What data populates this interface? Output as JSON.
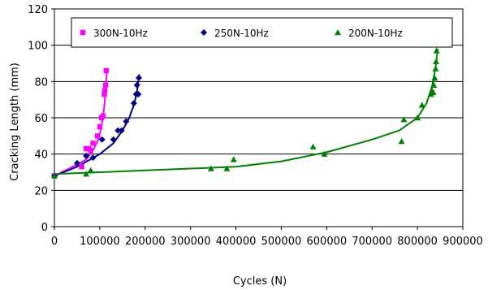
{
  "chart_data": {
    "type": "scatter",
    "title": "",
    "xlabel": "Cycles (N)",
    "ylabel": "Cracking Length (mm)",
    "xlim": [
      0,
      900000
    ],
    "ylim": [
      0,
      120
    ],
    "x_ticks": [
      0,
      100000,
      200000,
      300000,
      400000,
      500000,
      600000,
      700000,
      800000,
      900000
    ],
    "y_ticks": [
      0,
      20,
      40,
      60,
      80,
      100,
      120
    ],
    "grid": "horizontal",
    "legend_position": "top",
    "series": [
      {
        "name": "300N-10Hz",
        "color": "#ff00ff",
        "marker": "square",
        "points": [
          [
            0,
            28
          ],
          [
            60000,
            33
          ],
          [
            70000,
            43
          ],
          [
            75000,
            43
          ],
          [
            80000,
            42
          ],
          [
            85000,
            46
          ],
          [
            95000,
            50
          ],
          [
            100000,
            55
          ],
          [
            104000,
            60
          ],
          [
            107000,
            61
          ],
          [
            110000,
            73
          ],
          [
            111000,
            75
          ],
          [
            113000,
            78
          ],
          [
            114000,
            86
          ]
        ],
        "trend": [
          [
            0,
            28
          ],
          [
            40000,
            33
          ],
          [
            70000,
            37
          ],
          [
            85000,
            42
          ],
          [
            95000,
            47
          ],
          [
            102000,
            53
          ],
          [
            107000,
            60
          ],
          [
            111000,
            69
          ],
          [
            114000,
            80
          ],
          [
            116000,
            86
          ]
        ]
      },
      {
        "name": "250N-10Hz",
        "color": "#000080",
        "marker": "diamond",
        "points": [
          [
            0,
            28
          ],
          [
            50000,
            35
          ],
          [
            70000,
            39
          ],
          [
            85000,
            38
          ],
          [
            105000,
            48
          ],
          [
            130000,
            48
          ],
          [
            140000,
            53
          ],
          [
            148000,
            53
          ],
          [
            158000,
            58
          ],
          [
            175000,
            68
          ],
          [
            180000,
            73
          ],
          [
            182000,
            78
          ],
          [
            185000,
            73
          ],
          [
            186000,
            82
          ]
        ],
        "trend": [
          [
            0,
            28
          ],
          [
            50000,
            33
          ],
          [
            100000,
            40
          ],
          [
            130000,
            46
          ],
          [
            150000,
            53
          ],
          [
            165000,
            60
          ],
          [
            175000,
            67
          ],
          [
            181000,
            73
          ],
          [
            185000,
            80
          ],
          [
            187000,
            84
          ]
        ]
      },
      {
        "name": "200N-10Hz",
        "color": "#008000",
        "marker": "triangle",
        "points": [
          [
            0,
            28
          ],
          [
            70000,
            29
          ],
          [
            80000,
            31
          ],
          [
            345000,
            32
          ],
          [
            380000,
            32
          ],
          [
            395000,
            37
          ],
          [
            570000,
            44
          ],
          [
            595000,
            40
          ],
          [
            765000,
            47
          ],
          [
            770000,
            59
          ],
          [
            800000,
            60
          ],
          [
            810000,
            67
          ],
          [
            830000,
            73
          ],
          [
            832000,
            75
          ],
          [
            835000,
            74
          ],
          [
            836000,
            78
          ],
          [
            838000,
            82
          ],
          [
            840000,
            87
          ],
          [
            841000,
            91
          ],
          [
            842000,
            97
          ]
        ],
        "trend": [
          [
            0,
            29
          ],
          [
            100000,
            30
          ],
          [
            200000,
            31
          ],
          [
            300000,
            32
          ],
          [
            400000,
            33
          ],
          [
            500000,
            36
          ],
          [
            600000,
            41
          ],
          [
            700000,
            48
          ],
          [
            760000,
            53
          ],
          [
            800000,
            60
          ],
          [
            820000,
            68
          ],
          [
            832000,
            77
          ],
          [
            840000,
            88
          ],
          [
            845000,
            98
          ]
        ]
      }
    ]
  }
}
